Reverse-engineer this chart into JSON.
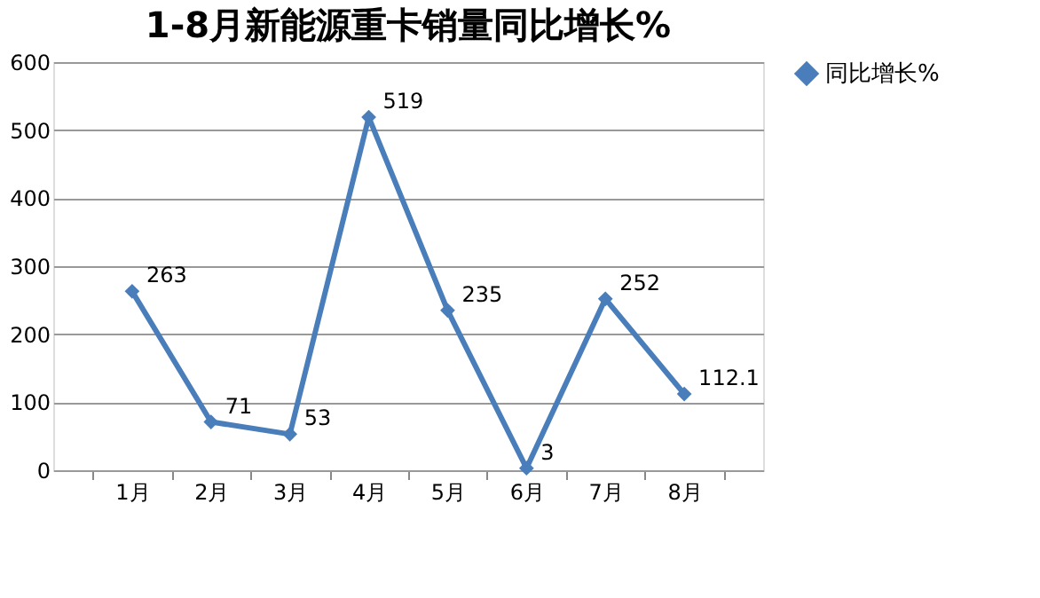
{
  "chart_data": {
    "type": "line",
    "title": "1-8月新能源重卡销量同比增长%",
    "categories": [
      "1月",
      "2月",
      "3月",
      "4月",
      "5月",
      "6月",
      "7月",
      "8月"
    ],
    "series": [
      {
        "name": "同比增长%",
        "color": "#4a7ebb",
        "values": [
          263,
          71,
          53,
          519,
          235,
          3,
          252,
          112.1
        ]
      }
    ],
    "ylim": [
      0,
      600
    ],
    "yticks": [
      0,
      100,
      200,
      300,
      400,
      500,
      600
    ],
    "grid": "y",
    "legend": "right",
    "marker": "diamond",
    "line_style": "solid",
    "data_labels": true
  }
}
